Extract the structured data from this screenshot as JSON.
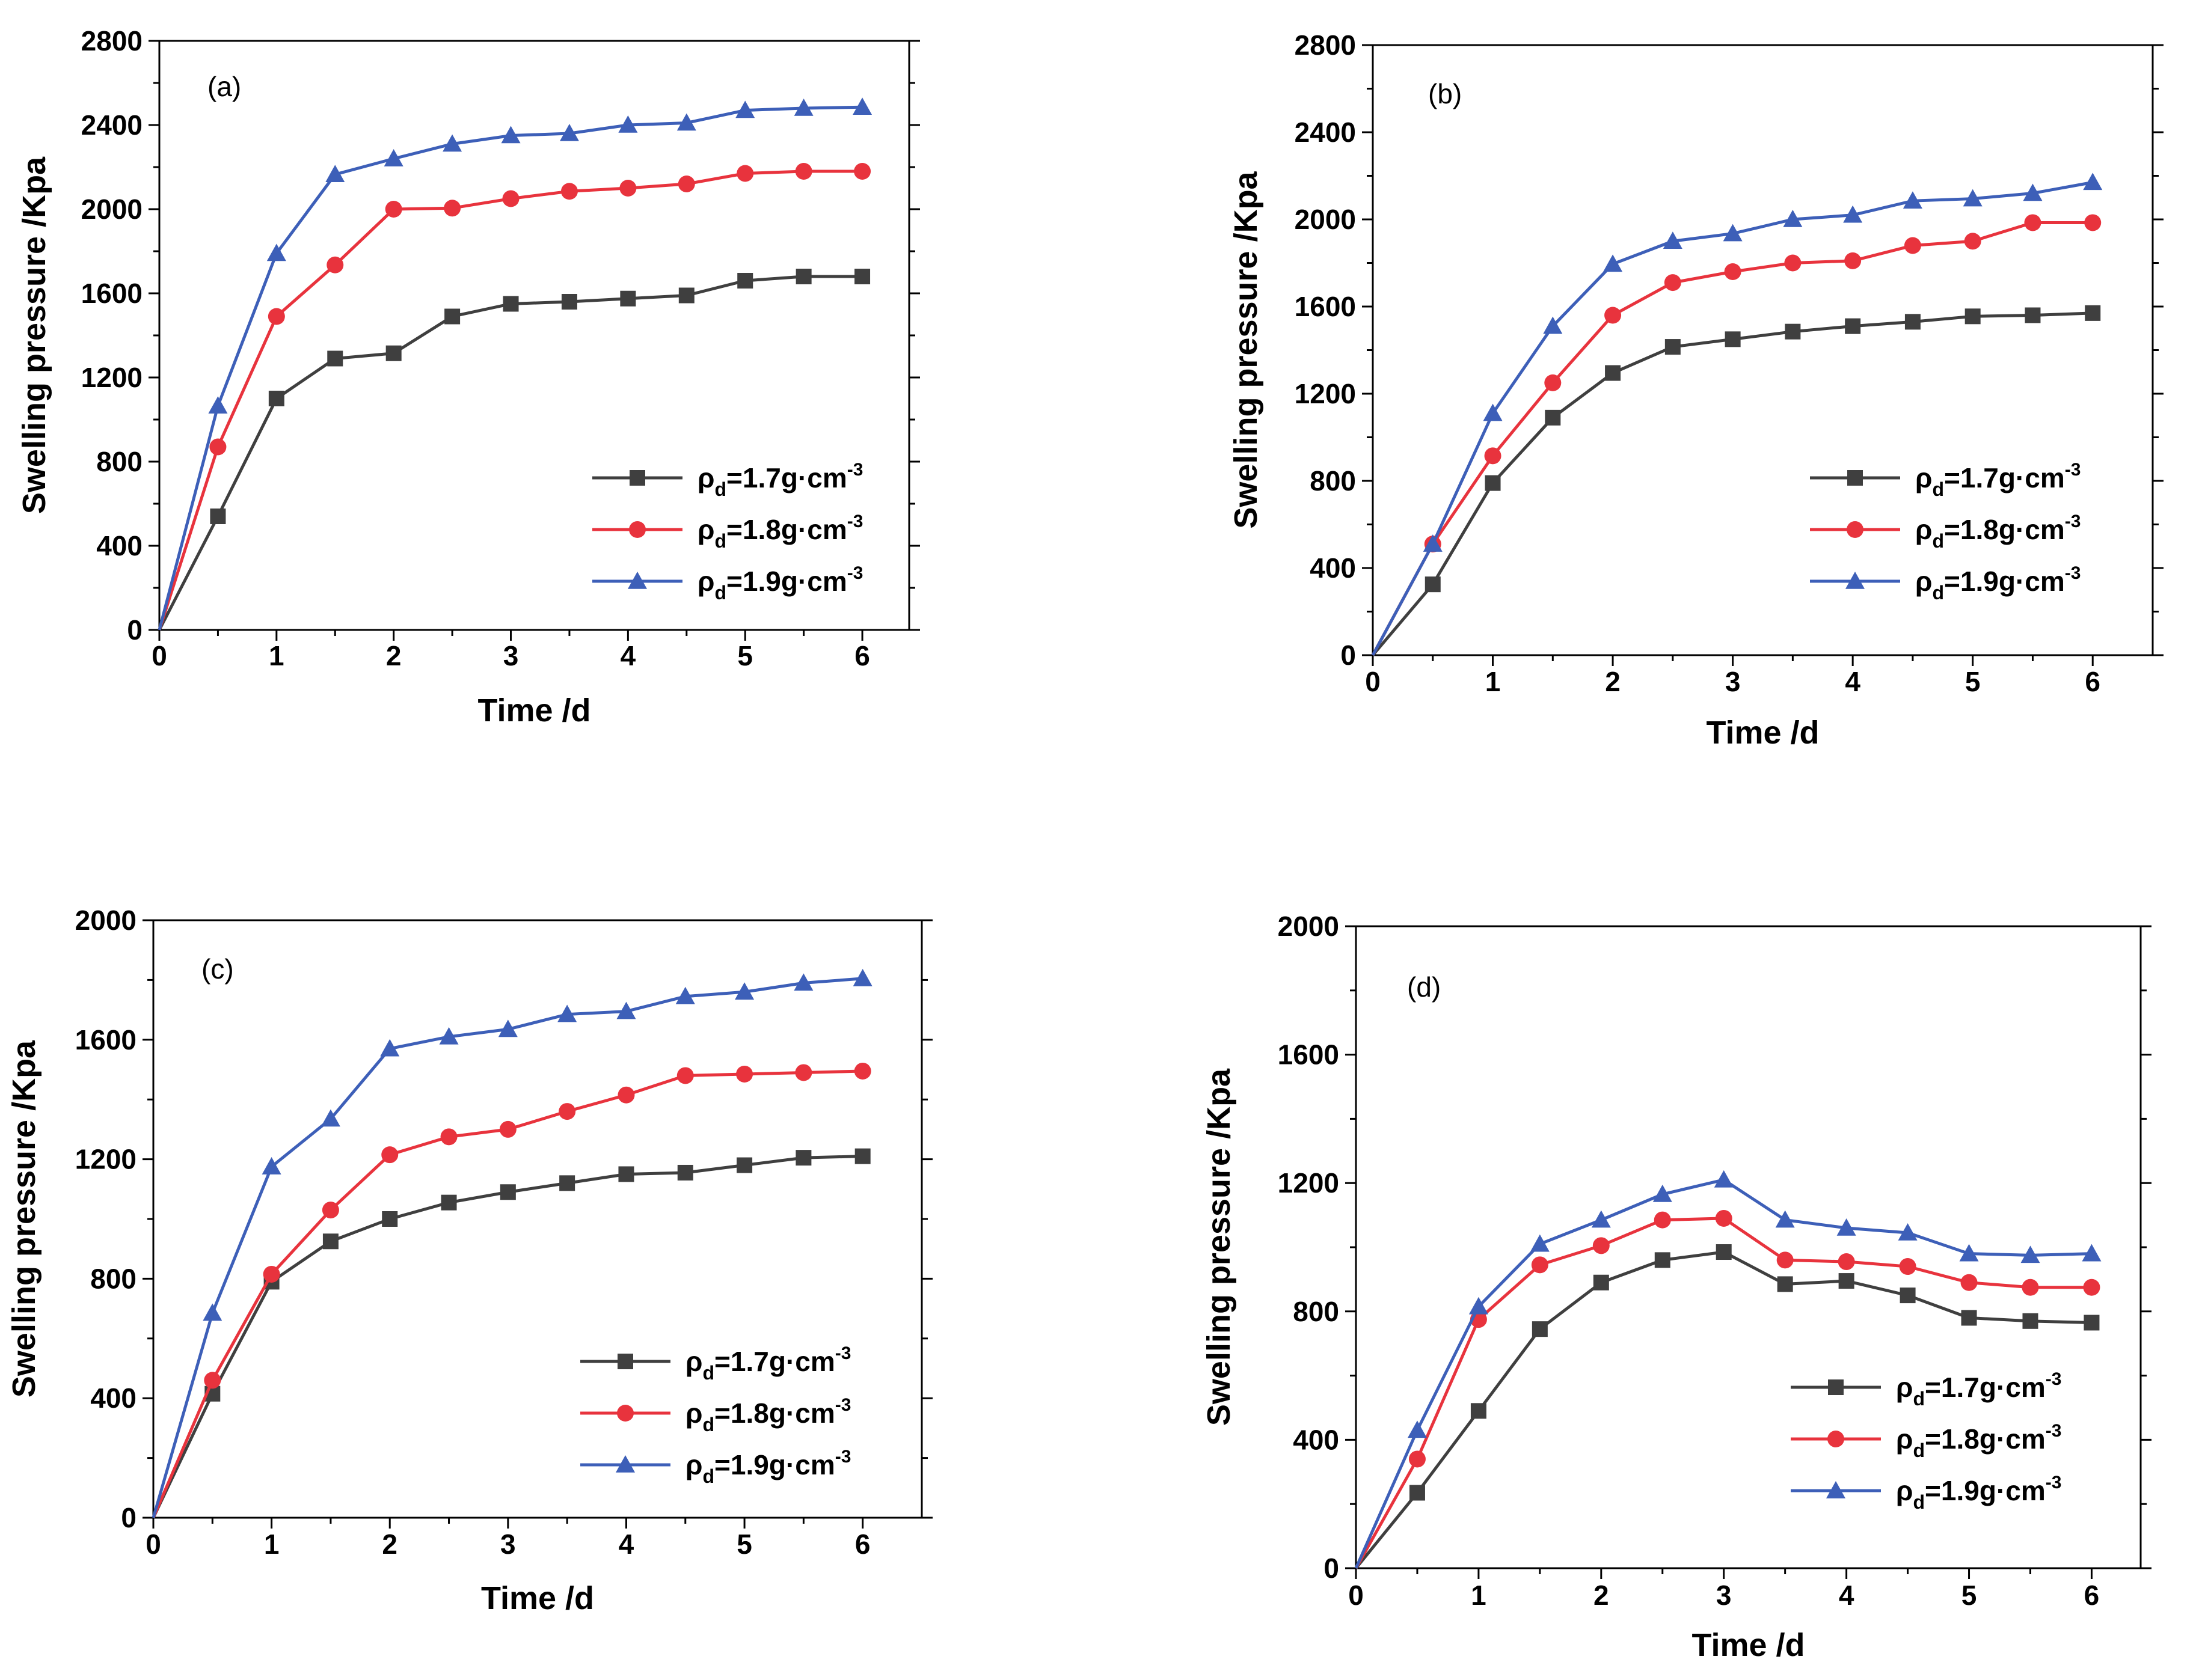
{
  "chart_data": [
    {
      "type": "line",
      "panel": "(a)",
      "xlabel": "Time /d",
      "ylabel": "Swelling pressure /Kpa",
      "xlim": [
        0,
        6.4
      ],
      "ylim": [
        0,
        2800
      ],
      "xticks": [
        0,
        1,
        2,
        3,
        4,
        5,
        6
      ],
      "yticks": [
        0,
        400,
        800,
        1200,
        1600,
        2000,
        2400,
        2800
      ],
      "x": [
        0,
        0.5,
        1,
        1.5,
        2,
        2.5,
        3,
        3.5,
        4,
        4.5,
        5,
        5.5,
        6
      ],
      "series": [
        {
          "name": "ρd=1.7g·cm-3",
          "values": [
            0,
            540,
            1100,
            1290,
            1315,
            1490,
            1550,
            1560,
            1575,
            1590,
            1660,
            1680,
            1680
          ]
        },
        {
          "name": "ρd=1.8g·cm-3",
          "values": [
            0,
            870,
            1490,
            1735,
            2000,
            2005,
            2050,
            2085,
            2100,
            2120,
            2170,
            2180,
            2180
          ]
        },
        {
          "name": "ρd=1.9g·cm-3",
          "values": [
            0,
            1065,
            1790,
            2165,
            2240,
            2310,
            2350,
            2360,
            2400,
            2410,
            2470,
            2480,
            2485
          ]
        }
      ]
    },
    {
      "type": "line",
      "panel": "(b)",
      "xlabel": "Time /d",
      "ylabel": "Swelling pressure /Kpa",
      "xlim": [
        0,
        6.5
      ],
      "ylim": [
        0,
        2800
      ],
      "xticks": [
        0,
        1,
        2,
        3,
        4,
        5,
        6
      ],
      "yticks": [
        0,
        400,
        800,
        1200,
        1600,
        2000,
        2400,
        2800
      ],
      "x": [
        0,
        0.5,
        1,
        1.5,
        2,
        2.5,
        3,
        3.5,
        4,
        4.5,
        5,
        5.5,
        6
      ],
      "series": [
        {
          "name": "ρd=1.7g·cm-3",
          "values": [
            0,
            325,
            790,
            1090,
            1295,
            1415,
            1450,
            1485,
            1510,
            1530,
            1555,
            1560,
            1570
          ]
        },
        {
          "name": "ρd=1.8g·cm-3",
          "values": [
            0,
            510,
            915,
            1250,
            1560,
            1710,
            1760,
            1800,
            1810,
            1880,
            1900,
            1985,
            1985
          ]
        },
        {
          "name": "ρd=1.9g·cm-3",
          "values": [
            0,
            510,
            1110,
            1510,
            1795,
            1900,
            1935,
            2000,
            2020,
            2085,
            2095,
            2120,
            2170
          ]
        }
      ]
    },
    {
      "type": "line",
      "panel": "(c)",
      "xlabel": "Time /d",
      "ylabel": "Swelling pressure /Kpa",
      "xlim": [
        0,
        6.5
      ],
      "ylim": [
        0,
        2000
      ],
      "xticks": [
        0,
        1,
        2,
        3,
        4,
        5,
        6
      ],
      "yticks": [
        0,
        400,
        800,
        1200,
        1600,
        2000
      ],
      "x": [
        0,
        0.5,
        1,
        1.5,
        2,
        2.5,
        3,
        3.5,
        4,
        4.5,
        5,
        5.5,
        6
      ],
      "series": [
        {
          "name": "ρd=1.7g·cm-3",
          "values": [
            0,
            415,
            790,
            925,
            1000,
            1055,
            1090,
            1120,
            1150,
            1155,
            1180,
            1205,
            1210
          ]
        },
        {
          "name": "ρd=1.8g·cm-3",
          "values": [
            0,
            460,
            815,
            1030,
            1215,
            1275,
            1300,
            1360,
            1415,
            1480,
            1485,
            1490,
            1495
          ]
        },
        {
          "name": "ρd=1.9g·cm-3",
          "values": [
            0,
            685,
            1175,
            1335,
            1570,
            1610,
            1635,
            1685,
            1695,
            1745,
            1760,
            1790,
            1805
          ]
        }
      ]
    },
    {
      "type": "line",
      "panel": "(d)",
      "xlabel": "Time /d",
      "ylabel": "Swelling pressure /Kpa",
      "xlim": [
        0,
        6.4
      ],
      "ylim": [
        0,
        2000
      ],
      "xticks": [
        0,
        1,
        2,
        3,
        4,
        5,
        6
      ],
      "yticks": [
        0,
        400,
        800,
        1200,
        1600,
        2000
      ],
      "x": [
        0,
        0.5,
        1,
        1.5,
        2,
        2.5,
        3,
        3.5,
        4,
        4.5,
        5,
        5.5,
        6
      ],
      "series": [
        {
          "name": "ρd=1.7g·cm-3",
          "values": [
            0,
            235,
            490,
            745,
            890,
            960,
            985,
            885,
            895,
            850,
            780,
            770,
            765
          ]
        },
        {
          "name": "ρd=1.8g·cm-3",
          "values": [
            0,
            340,
            775,
            945,
            1005,
            1085,
            1090,
            960,
            955,
            940,
            890,
            875,
            875
          ]
        },
        {
          "name": "ρd=1.9g·cm-3",
          "values": [
            0,
            430,
            815,
            1010,
            1085,
            1165,
            1210,
            1085,
            1060,
            1045,
            980,
            975,
            980
          ]
        }
      ]
    }
  ],
  "legend_text": {
    "rho": "ρ",
    "sub": "d",
    "sup": "-3",
    "entries": [
      "=1.7g·cm",
      "=1.8g·cm",
      "=1.9g·cm"
    ]
  },
  "colors": {
    "series": [
      "#3f3f3f",
      "#e8333d",
      "#3d5fb8"
    ],
    "axis": "#000000"
  },
  "markers": [
    "square",
    "circle",
    "triangle"
  ]
}
